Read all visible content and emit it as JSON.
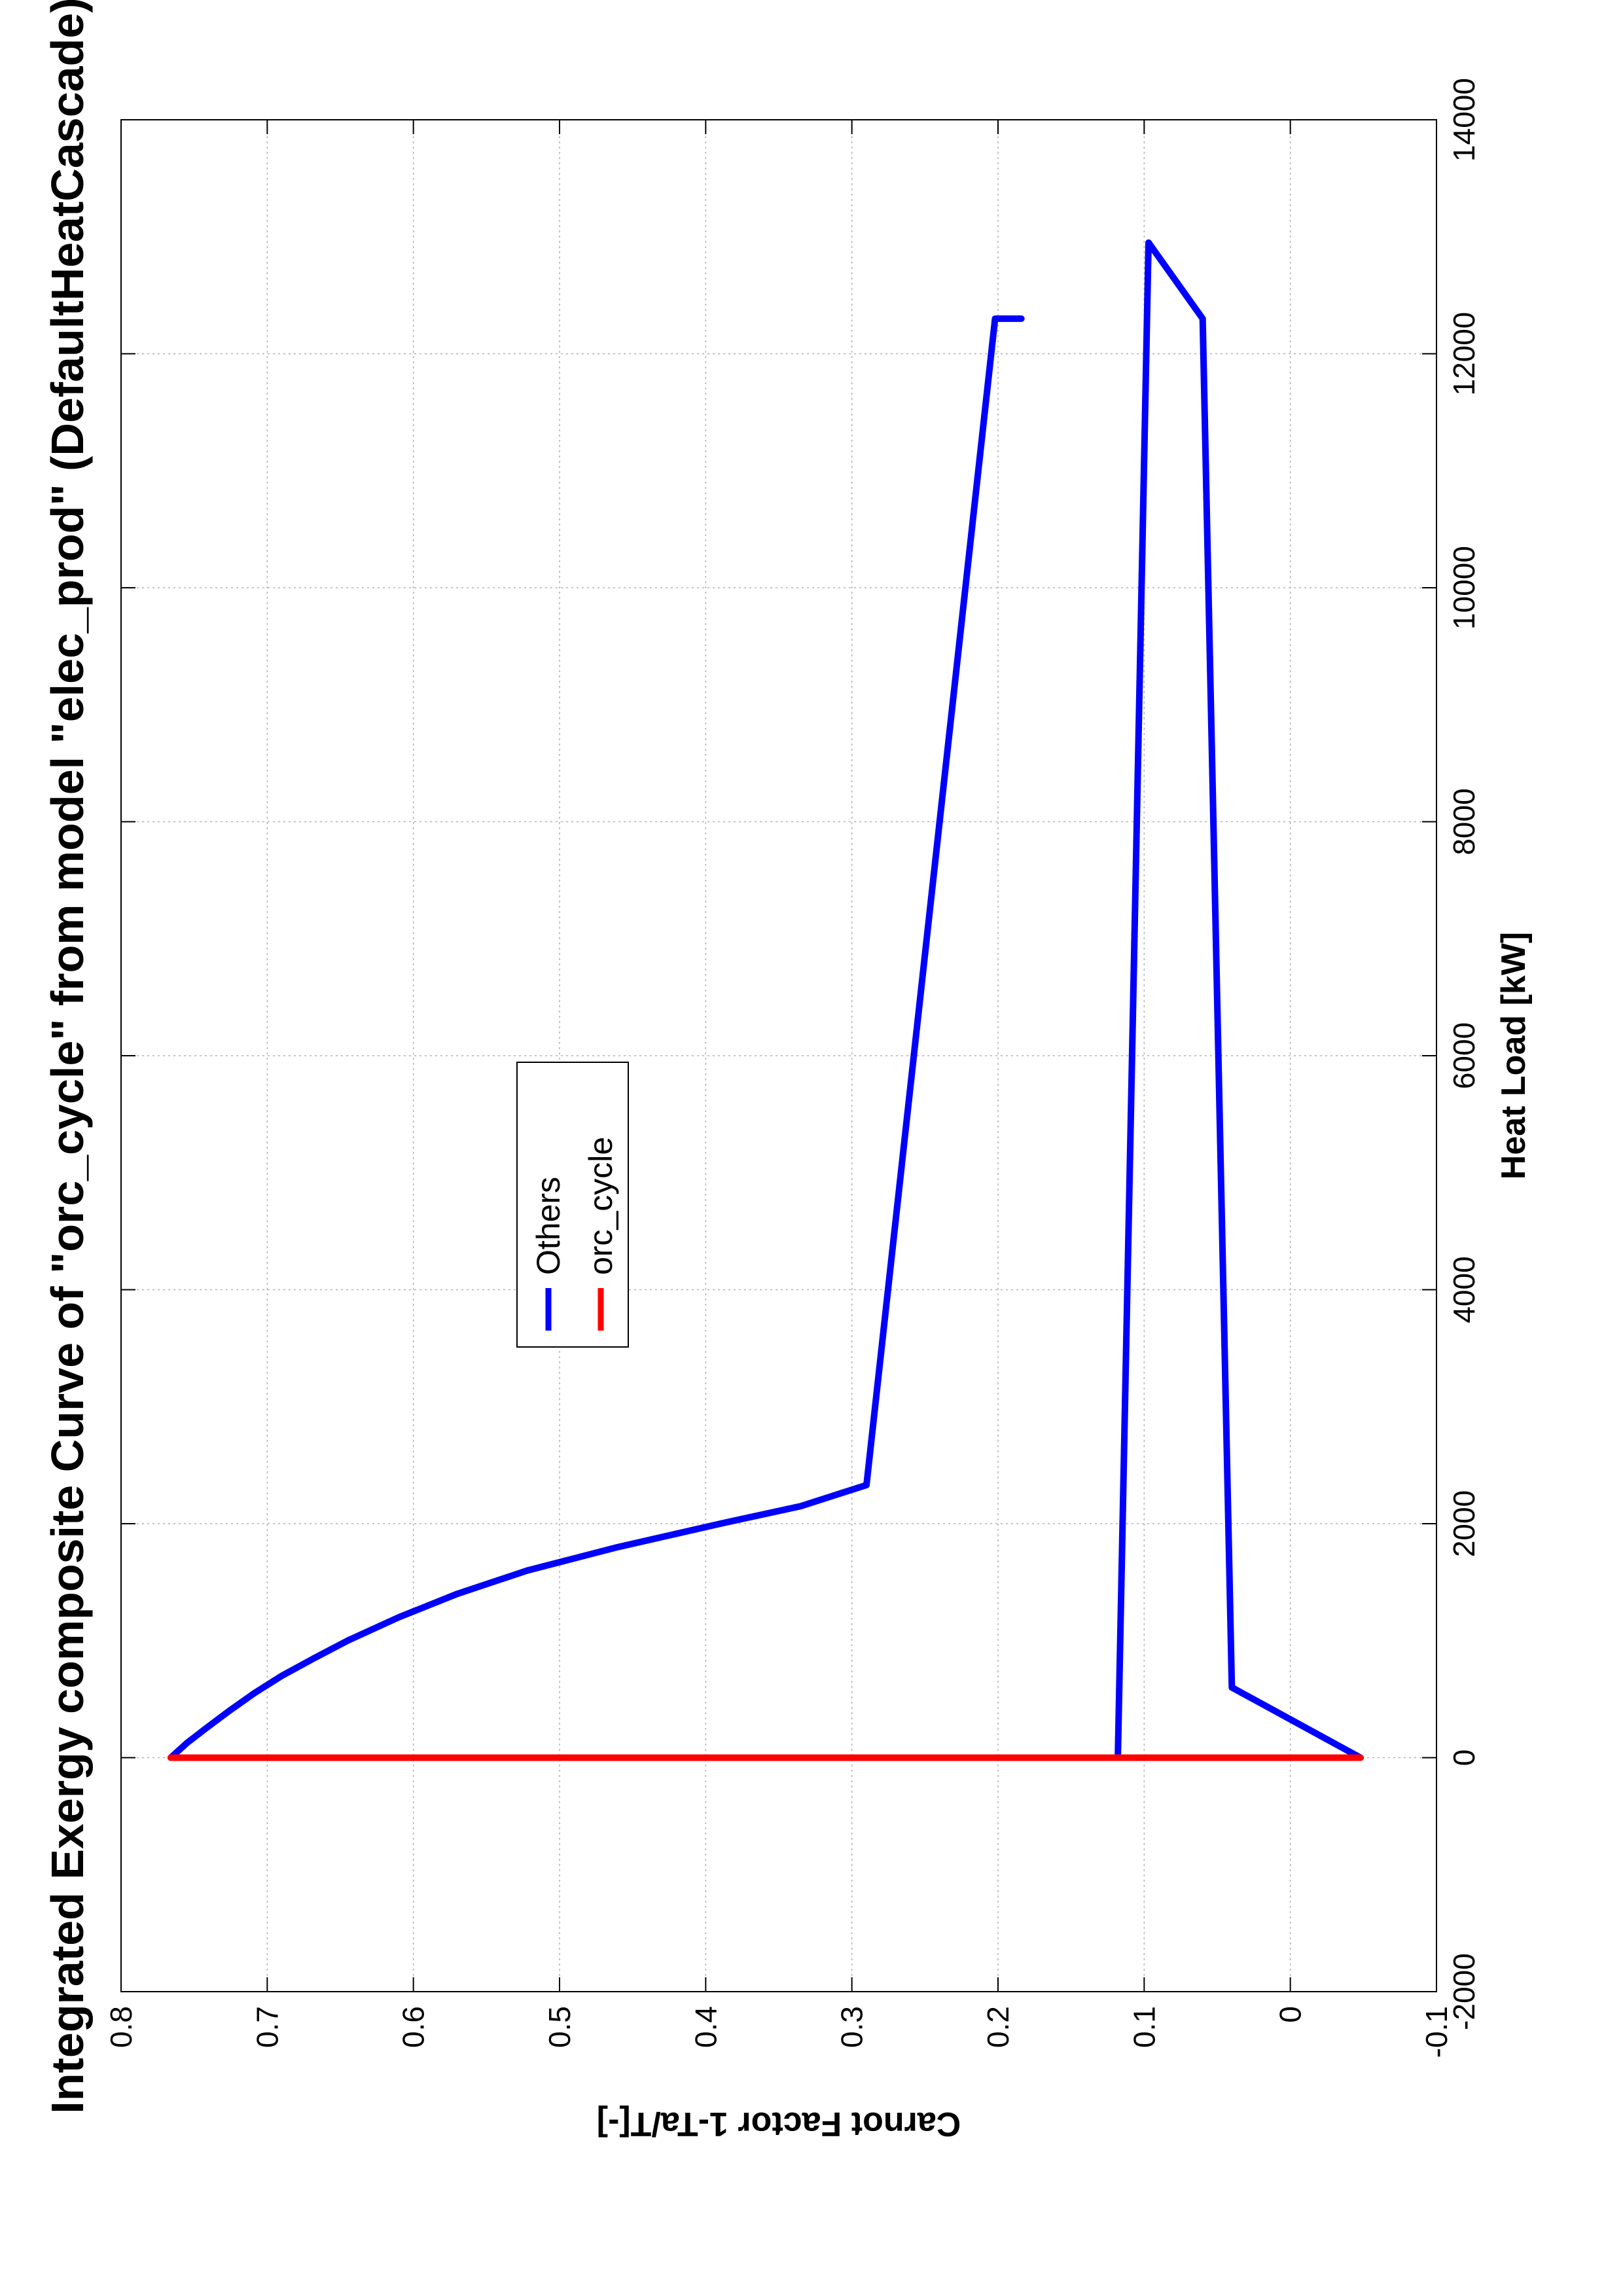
{
  "chart_data": {
    "type": "line",
    "title": "Integrated Exergy composite Curve of \"orc_cycle\" from model \"elec_prod\" (DefaultHeatCascade)",
    "xlabel": "Heat Load [kW]",
    "ylabel": "Carnot Factor 1-Ta/T[-]",
    "xlim": [
      -2000,
      14000
    ],
    "ylim": [
      -0.1,
      0.8
    ],
    "x_ticks": [
      -2000,
      0,
      2000,
      4000,
      6000,
      8000,
      10000,
      12000,
      14000
    ],
    "y_ticks": [
      -0.1,
      0,
      0.1,
      0.2,
      0.3,
      0.4,
      0.5,
      0.6,
      0.7,
      0.8
    ],
    "x_tick_labels": [
      "-2000",
      "0",
      "2000",
      "4000",
      "6000",
      "8000",
      "10000",
      "12000",
      "14000"
    ],
    "y_tick_labels": [
      "-0.1",
      "0",
      "0.1",
      "0.2",
      "0.3",
      "0.4",
      "0.5",
      "0.6",
      "0.7",
      "0.8"
    ],
    "grid": true,
    "orientation": "rotated 90 degrees counter-clockwise",
    "legend": {
      "placement": "upper-middle"
    },
    "series": [
      {
        "name": "Others",
        "color": "#0000ff",
        "x": [
          0,
          125,
          250,
          400,
          550,
          700,
          850,
          1000,
          1200,
          1400,
          1600,
          1800,
          2000,
          2150,
          2330,
          12300,
          12300,
          12300,
          12300,
          12300,
          12300,
          12300,
          12300,
          12300,
          12300,
          12300,
          12300,
          12300,
          12300,
          12300,
          12300,
          12300,
          12300,
          12300,
          12300
        ],
        "y": [
          0.766,
          0.755,
          0.742,
          0.726,
          0.709,
          0.69,
          0.668,
          0.645,
          0.61,
          0.57,
          0.522,
          0.46,
          0.39,
          0.335,
          0.29,
          0.202,
          0.184,
          0.184,
          0.184,
          0.184,
          0.184,
          0.184,
          0.184,
          0.184,
          0.184,
          0.184,
          0.184,
          0.184,
          0.184,
          0.184,
          0.184,
          0.184,
          0.184,
          0.184,
          0.184
        ]
      },
      {
        "name": "",
        "color": "#0000ff",
        "x": [
          0,
          12950,
          12300,
          600,
          0
        ],
        "y": [
          0.118,
          0.097,
          0.06,
          0.04,
          -0.048
        ]
      },
      {
        "name": "orc_cycle",
        "color": "#ff0000",
        "x": [
          0,
          0
        ],
        "y": [
          0.766,
          -0.048
        ]
      }
    ]
  }
}
